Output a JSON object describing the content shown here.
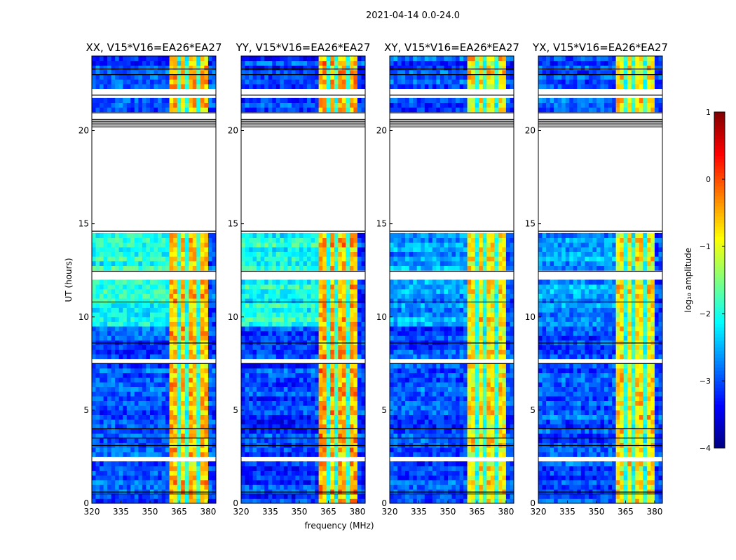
{
  "figure_title": "2021-04-14 0.0-24.0",
  "xlabel": "frequency (MHz)",
  "ylabel": "UT (hours)",
  "colorbar": {
    "label": "log₁₀ amplitude",
    "range": [
      -4,
      1
    ],
    "ticks": [
      "1",
      "0",
      "−1",
      "−2",
      "−3",
      "−4"
    ],
    "tick_values": [
      1,
      0,
      -1,
      -2,
      -3,
      -4
    ],
    "colormap": "jet"
  },
  "chart_data": [
    {
      "type": "heatmap",
      "title": "XX, V15*V16=EA26*EA27",
      "xlim": [
        320,
        384
      ],
      "ylim": [
        0,
        24
      ],
      "xticks": [
        "320",
        "335",
        "350",
        "365",
        "380"
      ],
      "yticks": [
        "0",
        "5",
        "10",
        "15",
        "20"
      ],
      "base_level": -3.0,
      "mid_level": -2.0,
      "band_level": -0.6
    },
    {
      "type": "heatmap",
      "title": "YY, V15*V16=EA26*EA27",
      "xlim": [
        320,
        384
      ],
      "ylim": [
        0,
        24
      ],
      "xticks": [
        "320",
        "335",
        "350",
        "365",
        "380"
      ],
      "yticks": [
        "0",
        "5",
        "10",
        "15",
        "20"
      ],
      "base_level": -3.1,
      "mid_level": -2.0,
      "band_level": -0.5
    },
    {
      "type": "heatmap",
      "title": "XY, V15*V16=EA26*EA27",
      "xlim": [
        320,
        384
      ],
      "ylim": [
        0,
        24
      ],
      "xticks": [
        "320",
        "335",
        "350",
        "365",
        "380"
      ],
      "yticks": [
        "0",
        "5",
        "10",
        "15",
        "20"
      ],
      "base_level": -3.0,
      "mid_level": -2.6,
      "band_level": -0.8
    },
    {
      "type": "heatmap",
      "title": "YX, V15*V16=EA26*EA27",
      "xlim": [
        320,
        384
      ],
      "ylim": [
        0,
        24
      ],
      "xticks": [
        "320",
        "335",
        "350",
        "365",
        "380"
      ],
      "yticks": [
        "0",
        "5",
        "10",
        "15",
        "20"
      ],
      "base_level": -3.0,
      "mid_level": -2.6,
      "band_level": -0.8
    }
  ],
  "model": {
    "flagged_hours": [
      [
        2.3,
        2.6
      ],
      [
        7.6,
        7.7
      ],
      [
        12.1,
        12.4
      ],
      [
        14.6,
        20.9
      ],
      [
        21.8,
        22.2
      ]
    ],
    "black_line_hours": [
      0.5,
      0.6,
      3.1,
      3.5,
      4.0,
      7.5,
      8.6,
      10.8,
      12.45,
      14.6,
      20.2,
      20.3,
      20.4,
      20.5,
      20.6,
      20.95,
      21.9,
      23.0,
      23.3
    ],
    "strong_band_mhz": [
      360,
      380
    ],
    "band_gap_mhz": [
      364.5,
      369.5,
      374.5
    ],
    "mid_level_hours": [
      9.5,
      14.6
    ]
  }
}
